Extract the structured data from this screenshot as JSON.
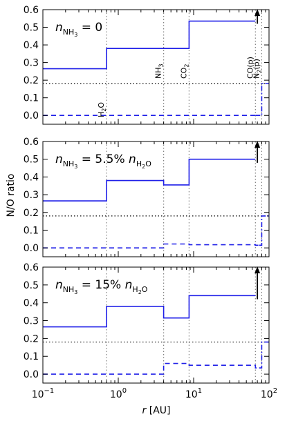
{
  "chart_data": [
    {
      "type": "line",
      "annotation": {
        "prefix": "n",
        "sub": "NH",
        "subsub": "3",
        "rest": " = 0",
        "sub2": "",
        "sub2sub": "",
        "tail": ""
      },
      "xscale": "log",
      "xlim": [
        0.1,
        100
      ],
      "ylim": [
        -0.05,
        0.6
      ],
      "yticks": [
        "0.0",
        "0.1",
        "0.2",
        "0.3",
        "0.4",
        "0.5",
        "0.6"
      ],
      "reference_line": {
        "y": 0.18,
        "style": "dotted"
      },
      "snowlines": [
        {
          "x": 0.7,
          "label": "H",
          "label_sub": "2",
          "label_tail": "O",
          "label_pos": "bottom"
        },
        {
          "x": 4.0,
          "label": "NH",
          "label_sub": "3",
          "label_tail": "",
          "label_pos": "top"
        },
        {
          "x": 8.7,
          "label": "CO",
          "label_sub": "2",
          "label_tail": "",
          "label_pos": "top"
        },
        {
          "x": 66,
          "label": "CO(p)",
          "label_sub": "",
          "label_tail": "",
          "label_pos": "top"
        },
        {
          "x": 80,
          "label": "N",
          "label_sub": "2",
          "label_tail": "(p)",
          "label_pos": "top"
        }
      ],
      "series": [
        {
          "style": "solid",
          "x": [
            0.1,
            0.7,
            0.7,
            8.7,
            8.7,
            66
          ],
          "y": [
            0.265,
            0.265,
            0.38,
            0.38,
            0.535,
            0.535
          ]
        },
        {
          "style": "dashed",
          "x": [
            0.1,
            66
          ],
          "y": [
            0.0,
            0.0
          ]
        },
        {
          "style": "dashdot",
          "x": [
            66,
            80,
            80,
            100
          ],
          "y": [
            0.0,
            0.0,
            0.18,
            0.18
          ]
        }
      ],
      "arrow": {
        "x": 70,
        "y_from": 0.52,
        "y_to": 0.6
      }
    },
    {
      "type": "line",
      "annotation": {
        "prefix": "n",
        "sub": "NH",
        "subsub": "3",
        "rest": " = 5.5% ",
        "sub2": "H",
        "sub2sub": "2",
        "tail": "O"
      },
      "xscale": "log",
      "xlim": [
        0.1,
        100
      ],
      "ylim": [
        -0.05,
        0.6
      ],
      "yticks": [
        "0.0",
        "0.1",
        "0.2",
        "0.3",
        "0.4",
        "0.5",
        "0.6"
      ],
      "reference_line": {
        "y": 0.18,
        "style": "dotted"
      },
      "snowlines": [
        {
          "x": 0.7,
          "label": "",
          "label_sub": "",
          "label_tail": "",
          "label_pos": "none"
        },
        {
          "x": 4.0,
          "label": "",
          "label_sub": "",
          "label_tail": "",
          "label_pos": "none"
        },
        {
          "x": 8.7,
          "label": "",
          "label_sub": "",
          "label_tail": "",
          "label_pos": "none"
        },
        {
          "x": 66,
          "label": "",
          "label_sub": "",
          "label_tail": "",
          "label_pos": "none"
        },
        {
          "x": 80,
          "label": "",
          "label_sub": "",
          "label_tail": "",
          "label_pos": "none"
        }
      ],
      "series": [
        {
          "style": "solid",
          "x": [
            0.1,
            0.7,
            0.7,
            4.0,
            4.0,
            8.7,
            8.7,
            66
          ],
          "y": [
            0.265,
            0.265,
            0.38,
            0.38,
            0.355,
            0.355,
            0.5,
            0.5
          ]
        },
        {
          "style": "dashed",
          "x": [
            0.1,
            4.0,
            4.0,
            8.7,
            8.7,
            66,
            66,
            74
          ],
          "y": [
            0.0,
            0.0,
            0.022,
            0.022,
            0.018,
            0.018,
            0.015,
            0.015
          ]
        },
        {
          "style": "dashdot",
          "x": [
            74,
            80,
            80,
            100
          ],
          "y": [
            0.015,
            0.015,
            0.18,
            0.18
          ]
        }
      ],
      "arrow": {
        "x": 70,
        "y_from": 0.48,
        "y_to": 0.6
      }
    },
    {
      "type": "line",
      "annotation": {
        "prefix": "n",
        "sub": "NH",
        "subsub": "3",
        "rest": " = 15% ",
        "sub2": "H",
        "sub2sub": "2",
        "tail": "O"
      },
      "xscale": "log",
      "xlim": [
        0.1,
        100
      ],
      "ylim": [
        -0.05,
        0.6
      ],
      "yticks": [
        "0.0",
        "0.1",
        "0.2",
        "0.3",
        "0.4",
        "0.5",
        "0.6"
      ],
      "reference_line": {
        "y": 0.18,
        "style": "dotted"
      },
      "snowlines": [
        {
          "x": 0.7,
          "label": "",
          "label_sub": "",
          "label_tail": "",
          "label_pos": "none"
        },
        {
          "x": 4.0,
          "label": "",
          "label_sub": "",
          "label_tail": "",
          "label_pos": "none"
        },
        {
          "x": 8.7,
          "label": "",
          "label_sub": "",
          "label_tail": "",
          "label_pos": "none"
        },
        {
          "x": 66,
          "label": "",
          "label_sub": "",
          "label_tail": "",
          "label_pos": "none"
        },
        {
          "x": 80,
          "label": "",
          "label_sub": "",
          "label_tail": "",
          "label_pos": "none"
        }
      ],
      "series": [
        {
          "style": "solid",
          "x": [
            0.1,
            0.7,
            0.7,
            4.0,
            4.0,
            8.7,
            8.7,
            66
          ],
          "y": [
            0.265,
            0.265,
            0.38,
            0.38,
            0.315,
            0.315,
            0.44,
            0.44
          ]
        },
        {
          "style": "dashed",
          "x": [
            0.1,
            4.0,
            4.0,
            8.7,
            8.7,
            66,
            66,
            74
          ],
          "y": [
            0.0,
            0.0,
            0.06,
            0.06,
            0.05,
            0.05,
            0.035,
            0.035
          ]
        },
        {
          "style": "dashdot",
          "x": [
            74,
            80,
            80,
            100
          ],
          "y": [
            0.035,
            0.035,
            0.18,
            0.18
          ]
        }
      ],
      "arrow": {
        "x": 70,
        "y_from": 0.42,
        "y_to": 0.6
      }
    }
  ],
  "xticks": [
    {
      "base": "10",
      "exp": "−1",
      "value": 0.1
    },
    {
      "base": "10",
      "exp": "0",
      "value": 1
    },
    {
      "base": "10",
      "exp": "1",
      "value": 10
    },
    {
      "base": "10",
      "exp": "2",
      "value": 100
    }
  ],
  "xlabel": {
    "var": "r",
    "unit": " [AU]"
  },
  "ylabel": "N/O ratio"
}
